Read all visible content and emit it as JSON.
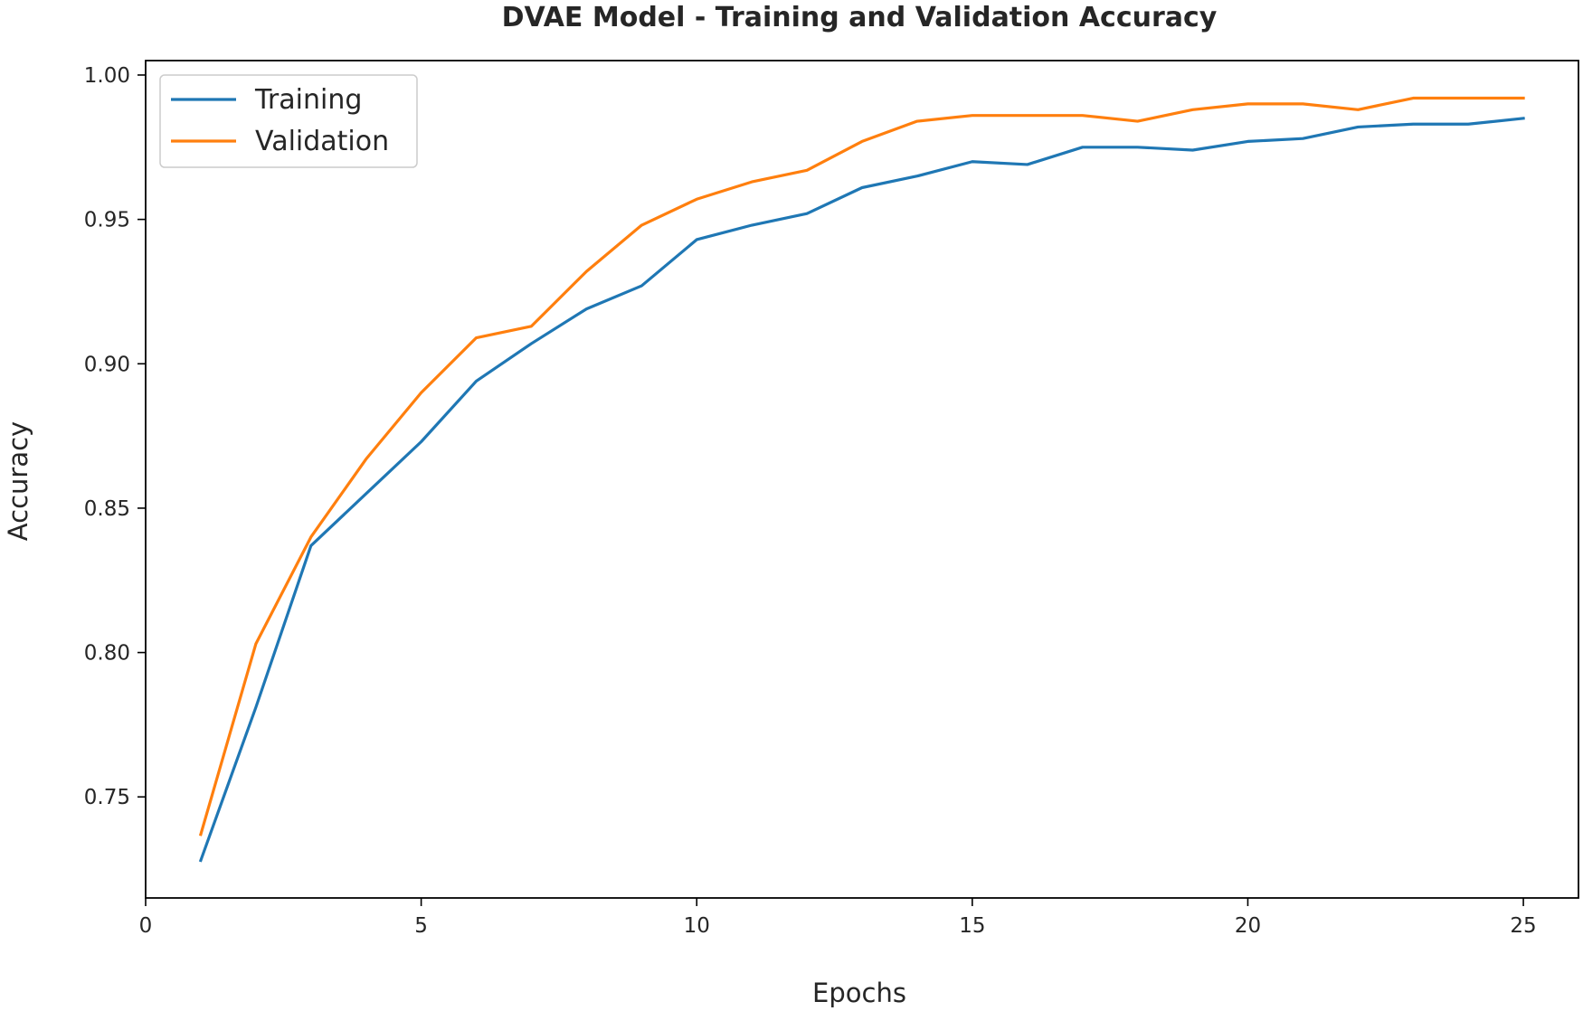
{
  "chart_data": {
    "type": "line",
    "title": "DVAE Model - Training and Validation Accuracy",
    "xlabel": "Epochs",
    "ylabel": "Accuracy",
    "xlim": [
      0,
      26
    ],
    "ylim": [
      0.715,
      1.005
    ],
    "xticks": [
      0,
      5,
      10,
      15,
      20,
      25
    ],
    "yticks": [
      0.75,
      0.8,
      0.85,
      0.9,
      0.95,
      1.0
    ],
    "xtick_labels": [
      "0",
      "5",
      "10",
      "15",
      "20",
      "25"
    ],
    "ytick_labels": [
      "0.75",
      "0.80",
      "0.85",
      "0.90",
      "0.95",
      "1.00"
    ],
    "grid": false,
    "legend_position": "top-left",
    "x": [
      1,
      2,
      3,
      4,
      5,
      6,
      7,
      8,
      9,
      10,
      11,
      12,
      13,
      14,
      15,
      16,
      17,
      18,
      19,
      20,
      21,
      22,
      23,
      24,
      25
    ],
    "series": [
      {
        "name": "Training",
        "color": "#1f77b4",
        "values": [
          0.728,
          0.781,
          0.837,
          0.855,
          0.873,
          0.894,
          0.907,
          0.919,
          0.927,
          0.943,
          0.948,
          0.952,
          0.961,
          0.965,
          0.97,
          0.969,
          0.975,
          0.975,
          0.974,
          0.977,
          0.978,
          0.982,
          0.983,
          0.983,
          0.985
        ]
      },
      {
        "name": "Validation",
        "color": "#ff7f0e",
        "values": [
          0.737,
          0.803,
          0.84,
          0.867,
          0.89,
          0.909,
          0.913,
          0.932,
          0.948,
          0.957,
          0.963,
          0.967,
          0.977,
          0.984,
          0.986,
          0.986,
          0.986,
          0.984,
          0.988,
          0.99,
          0.99,
          0.988,
          0.992,
          0.992,
          0.992
        ]
      }
    ]
  }
}
